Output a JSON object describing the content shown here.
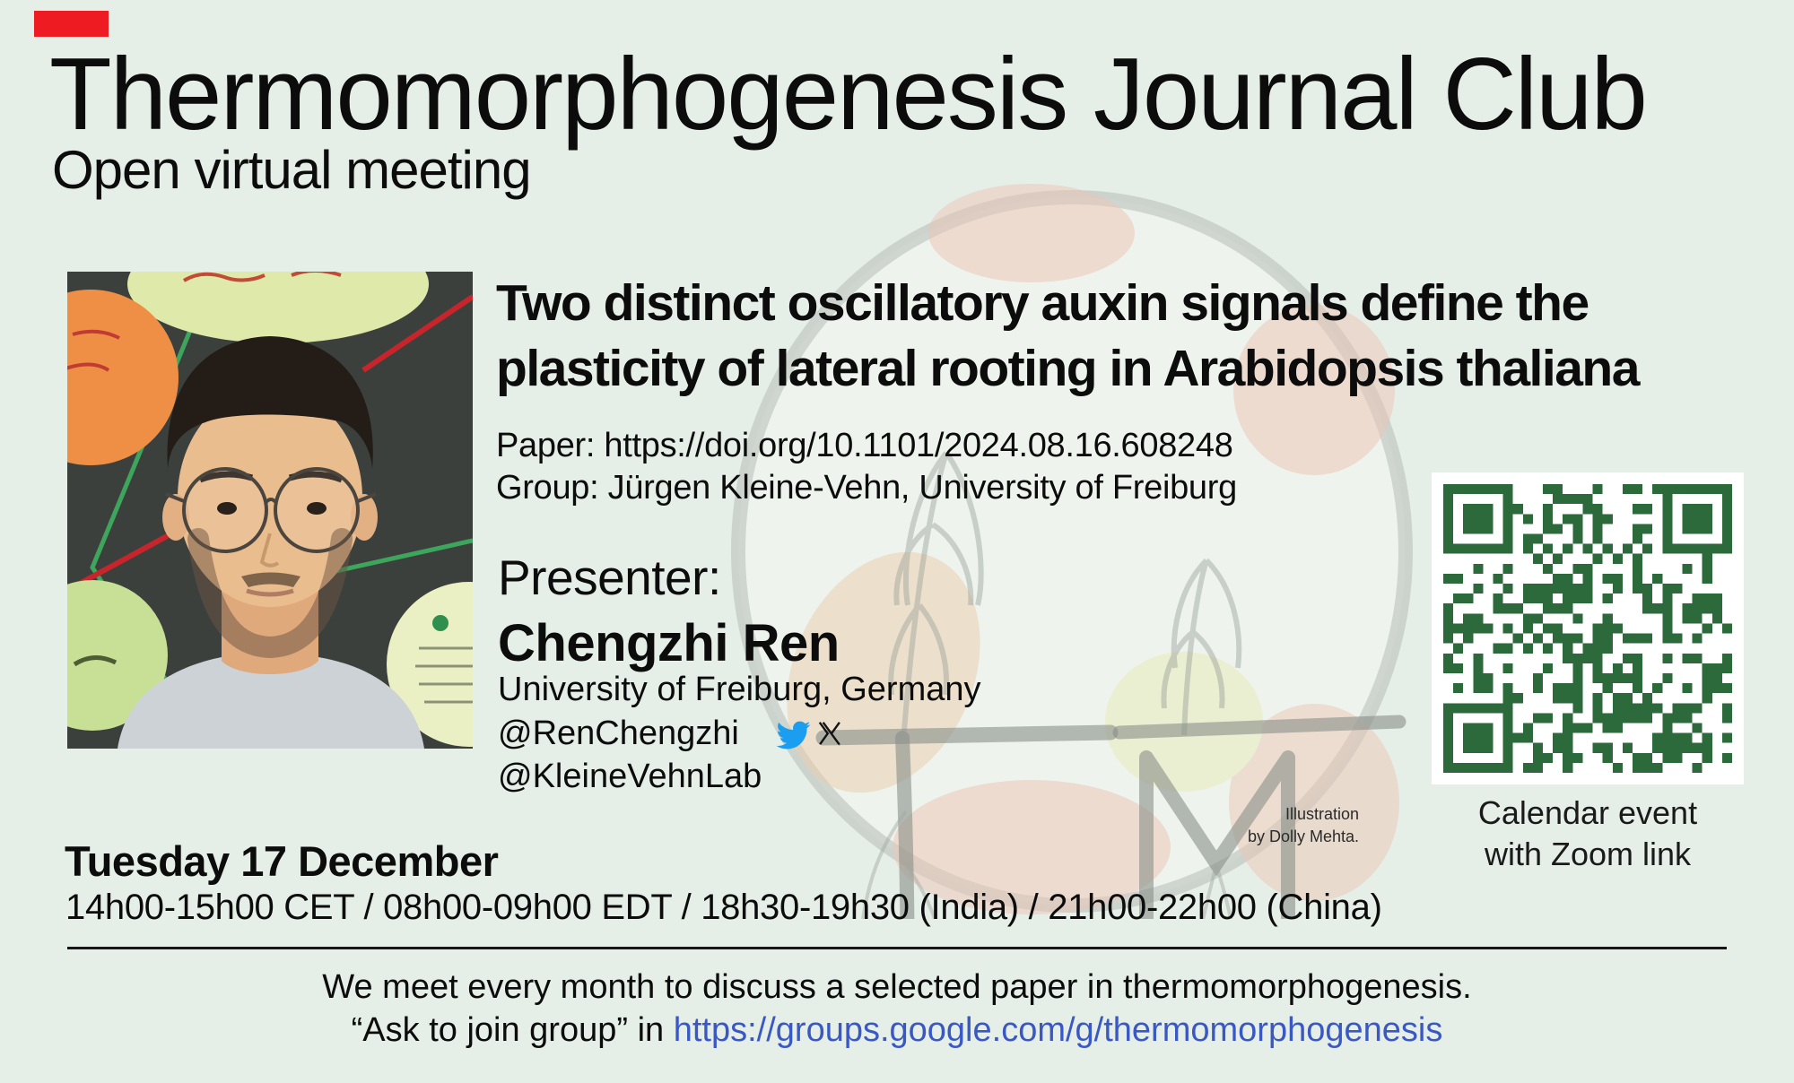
{
  "flyer": {
    "title": "Thermomorphogenesis Journal Club",
    "subtitle": "Open virtual meeting",
    "paper_title": "Two distinct oscillatory auxin signals define the plasticity of lateral rooting in Arabidopsis thaliana",
    "paper_line": "Paper: https://doi.org/10.1101/2024.08.16.608248",
    "group_line": "Group: Jürgen Kleine-Vehn, University of Freiburg",
    "presenter_label": "Presenter:",
    "presenter_name": "Chengzhi Ren",
    "presenter_affiliation": "University of Freiburg, Germany",
    "handle_personal": "@RenChengzhi",
    "handle_lab": "@KleineVehnLab",
    "qr_caption_line1": "Calendar event",
    "qr_caption_line2": "with Zoom link",
    "credit_line1": "Illustration",
    "credit_line2": "by Dolly Mehta.",
    "event_date": "Tuesday 17 December",
    "event_times": "14h00-15h00 CET / 08h00-09h00 EDT / 18h30-19h30 (India) / 21h00-22h00 (China)",
    "footer_line1": "We meet every month to discuss a selected paper in thermomorphogenesis.",
    "footer_line2_prefix": "“Ask to join group” in ",
    "footer_link": "https://groups.google.com/g/thermomorphogenesis"
  },
  "colors": {
    "background": "#e5eee7",
    "text": "#0c0c0c",
    "link_blue": "#3a58c4",
    "twitter_blue": "#1b9df0",
    "qr_green": "#2d6a3b",
    "red_marker": "#ee1b23"
  },
  "icons": {
    "twitter_bird": "twitter-bird-icon",
    "x_logo": "x-logo-icon",
    "qr": "qr-code"
  }
}
